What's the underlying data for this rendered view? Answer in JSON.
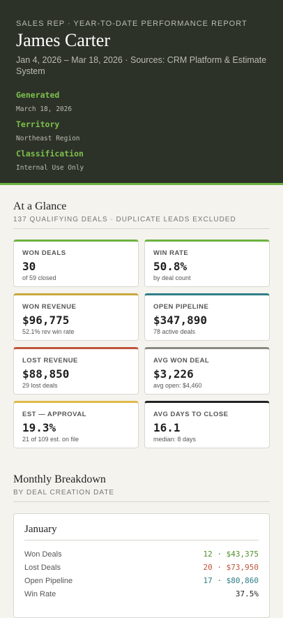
{
  "header": {
    "eyebrow": "SALES REP · YEAR-TO-DATE PERFORMANCE REPORT",
    "name": "James Carter",
    "subtitle": "Jan 4, 2026 – Mar 18, 2026  ·  Sources: CRM Platform & Estimate System",
    "meta": [
      {
        "label": "Generated",
        "value": "March 18, 2026"
      },
      {
        "label": "Territory",
        "value": "Northeast Region"
      },
      {
        "label": "Classification",
        "value": "Internal Use Only"
      }
    ]
  },
  "glance": {
    "title": "At a Glance",
    "subtitle": "137 QUALIFYING DEALS · DUPLICATE LEADS EXCLUDED",
    "cards": [
      {
        "label": "WON DEALS",
        "value": "30",
        "note": "of 59 closed",
        "color": "#6db33f"
      },
      {
        "label": "WIN RATE",
        "value": "50.8%",
        "note": "by deal count",
        "color": "#6db33f"
      },
      {
        "label": "WON REVENUE",
        "value": "$96,775",
        "note": "52.1% rev win rate",
        "color": "#c8a83a"
      },
      {
        "label": "OPEN PIPELINE",
        "value": "$347,890",
        "note": "78 active deals",
        "color": "#2f7f86"
      },
      {
        "label": "LOST REVENUE",
        "value": "$88,850",
        "note": "29 lost deals",
        "color": "#c0533a"
      },
      {
        "label": "AVG WON DEAL",
        "value": "$3,226",
        "note": "avg open: $4,460",
        "color": "#8a8a82"
      },
      {
        "label": "EST — APPROVAL",
        "value": "19.3%",
        "note": "21 of 109 est. on file",
        "color": "#e0b84a"
      },
      {
        "label": "AVG DAYS TO CLOSE",
        "value": "16.1",
        "note": "median: 8 days",
        "color": "#222222"
      }
    ]
  },
  "monthly": {
    "title": "Monthly Breakdown",
    "subtitle": "BY DEAL CREATION DATE",
    "months": [
      {
        "name": "January",
        "rows": [
          {
            "label": "Won Deals",
            "value": "12 · $43,375",
            "color": "#4f8f2a"
          },
          {
            "label": "Lost Deals",
            "value": "20 · $73,950",
            "color": "#c0533a"
          },
          {
            "label": "Open Pipeline",
            "value": "17 · $80,860",
            "color": "#2f7f86"
          },
          {
            "label": "Win Rate",
            "value": "37.5%",
            "color": "#222222"
          }
        ]
      }
    ]
  }
}
